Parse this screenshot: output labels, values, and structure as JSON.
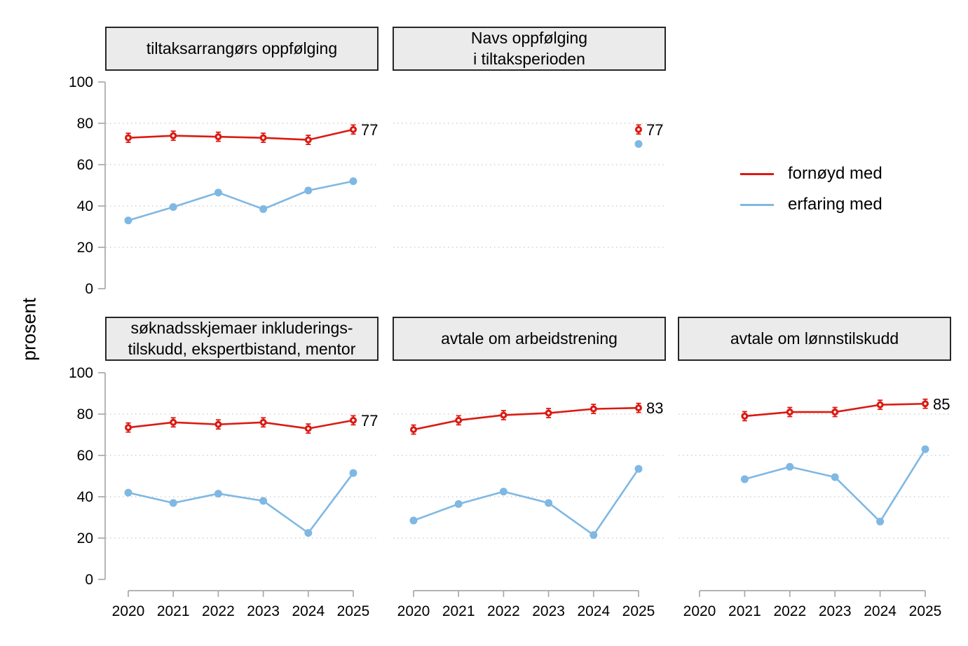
{
  "ylabel": "prosent",
  "colors": {
    "fornoyd": "#db1a12",
    "erfaring": "#7fb8e3",
    "axis": "#a9a9a9",
    "grid": "#c8c8c8",
    "header_bg": "#ebebeb",
    "header_border": "#262626",
    "text": "#000000"
  },
  "legend": {
    "items": [
      {
        "label": "fornøyd med",
        "color_key": "fornoyd"
      },
      {
        "label": "erfaring med",
        "color_key": "erfaring"
      }
    ]
  },
  "axis": {
    "y_ticks": [
      0,
      20,
      40,
      60,
      80,
      100
    ],
    "x_ticks": [
      "2020",
      "2021",
      "2022",
      "2023",
      "2024",
      "2025"
    ],
    "grid_style": "dotted",
    "grid_at": [
      20,
      40,
      60,
      80
    ]
  },
  "chart_data": [
    {
      "type": "line",
      "title": "tiltaksarrangørs oppfølging",
      "row": 0,
      "col": 0,
      "y_axis": true,
      "x_axis": false,
      "x": [
        2020,
        2021,
        2022,
        2023,
        2024,
        2025
      ],
      "ylim": [
        0,
        100
      ],
      "series": [
        {
          "name": "fornøyd med",
          "color_key": "fornoyd",
          "marker": "open-circle-error",
          "error_halfwidth": 2.2,
          "values": [
            73,
            74,
            73.5,
            73,
            72,
            77
          ],
          "end_label": "77"
        },
        {
          "name": "erfaring med",
          "color_key": "erfaring",
          "marker": "filled-circle",
          "values": [
            33,
            39.5,
            46.5,
            38.5,
            47.5,
            52
          ]
        }
      ]
    },
    {
      "type": "line",
      "title": "Navs oppfølging\ni tiltaksperioden",
      "row": 0,
      "col": 1,
      "y_axis": false,
      "x_axis": false,
      "x": [
        2020,
        2021,
        2022,
        2023,
        2024,
        2025
      ],
      "ylim": [
        0,
        100
      ],
      "series": [
        {
          "name": "fornøyd med",
          "color_key": "fornoyd",
          "marker": "open-circle-error",
          "error_halfwidth": 2.2,
          "values": [
            null,
            null,
            null,
            null,
            null,
            77
          ],
          "end_label": "77"
        },
        {
          "name": "erfaring med",
          "color_key": "erfaring",
          "marker": "filled-circle",
          "values": [
            null,
            null,
            null,
            null,
            null,
            70
          ]
        }
      ]
    },
    {
      "type": "line",
      "title": "søknadsskjemaer inkluderings-\ntilskudd, ekspertbistand, mentor",
      "row": 1,
      "col": 0,
      "y_axis": true,
      "x_axis": true,
      "x": [
        2020,
        2021,
        2022,
        2023,
        2024,
        2025
      ],
      "ylim": [
        0,
        100
      ],
      "series": [
        {
          "name": "fornøyd med",
          "color_key": "fornoyd",
          "marker": "open-circle-error",
          "error_halfwidth": 2.2,
          "values": [
            73.5,
            76,
            75,
            76,
            73,
            77
          ],
          "end_label": "77"
        },
        {
          "name": "erfaring med",
          "color_key": "erfaring",
          "marker": "filled-circle",
          "values": [
            42,
            37,
            41.5,
            38,
            22.5,
            51.5
          ]
        }
      ]
    },
    {
      "type": "line",
      "title": "avtale om arbeidstrening",
      "row": 1,
      "col": 1,
      "y_axis": false,
      "x_axis": true,
      "x": [
        2020,
        2021,
        2022,
        2023,
        2024,
        2025
      ],
      "ylim": [
        0,
        100
      ],
      "series": [
        {
          "name": "fornøyd med",
          "color_key": "fornoyd",
          "marker": "open-circle-error",
          "error_halfwidth": 2.2,
          "values": [
            72.5,
            77,
            79.5,
            80.5,
            82.5,
            83
          ],
          "end_label": "83"
        },
        {
          "name": "erfaring med",
          "color_key": "erfaring",
          "marker": "filled-circle",
          "values": [
            28.5,
            36.5,
            42.5,
            37,
            21.5,
            53.5
          ]
        }
      ]
    },
    {
      "type": "line",
      "title": "avtale om lønnstilskudd",
      "row": 1,
      "col": 2,
      "y_axis": false,
      "x_axis": true,
      "x": [
        2020,
        2021,
        2022,
        2023,
        2024,
        2025
      ],
      "ylim": [
        0,
        100
      ],
      "series": [
        {
          "name": "fornøyd med",
          "color_key": "fornoyd",
          "marker": "open-circle-error",
          "error_halfwidth": 2.2,
          "values": [
            null,
            79,
            81,
            81,
            84.5,
            85
          ],
          "end_label": "85"
        },
        {
          "name": "erfaring med",
          "color_key": "erfaring",
          "marker": "filled-circle",
          "values": [
            null,
            48.5,
            54.5,
            49.5,
            28,
            63
          ]
        }
      ]
    }
  ]
}
